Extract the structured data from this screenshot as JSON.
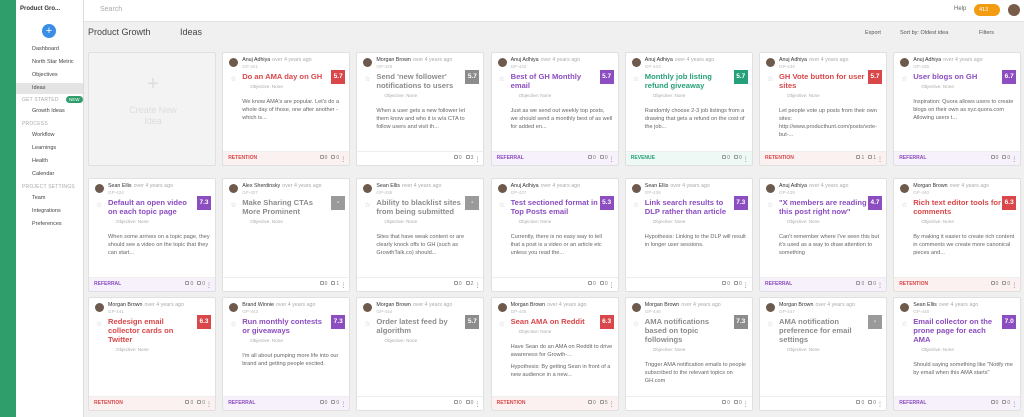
{
  "sidebar": {
    "workspace": "Product Gro...",
    "nav": [
      "Dashboard",
      "North Star Metric",
      "Objectives",
      "Ideas"
    ],
    "sections": [
      {
        "title": "GET STARTED",
        "badge": "NEW",
        "items": [
          "Growth Ideas"
        ]
      },
      {
        "title": "PROCESS",
        "items": [
          "Workflow",
          "Learnings",
          "Health",
          "Calendar"
        ]
      },
      {
        "title": "PROJECT SETTINGS",
        "items": [
          "Team",
          "Integrations",
          "Preferences"
        ]
      }
    ]
  },
  "topbar": {
    "search": "Search",
    "help": "Help",
    "notifications": "413"
  },
  "header": {
    "project": "Product Growth",
    "view": "Ideas",
    "export": "Export",
    "sort": "Sort by: Oldest idea",
    "filters": "Filters"
  },
  "create_card": "Create New Idea",
  "objective_label": "Objective: None",
  "ideas": [
    {
      "author": "Anuj Adhiya",
      "time": "over 4 years ago",
      "id": "GP-421",
      "title": "Do an AMA day on GH",
      "score": "5.7",
      "color": "#d9474a",
      "description": [
        "We know AMA's are popular. Let's do a whole day of those, one after another - which is..."
      ],
      "tag": "RETENTION",
      "counts": [
        0,
        0
      ]
    },
    {
      "author": "Morgan Brown",
      "time": "over 4 years ago",
      "id": "GP-429",
      "title": "Send 'new follower' notifications to users",
      "score": "5.7",
      "color": "#8c8c8c",
      "description": [
        "When a user gets a new follower let them know and who it is w/a CTA to follow users and visit th..."
      ],
      "counts": [
        0,
        3
      ]
    },
    {
      "author": "Anuj Adhiya",
      "time": "over 4 years ago",
      "id": "GP-432",
      "title": "Best of GH Monthly email",
      "score": "5.7",
      "color": "#8b4dbf",
      "description": [
        "Just as we send out weekly top posts, we should send a monthly best of as well for added en..."
      ],
      "tag": "REFERRAL",
      "counts": [
        0,
        0
      ]
    },
    {
      "author": "Anuj Adhiya",
      "time": "over 4 years ago",
      "id": "GP-433",
      "title": "Monthly job listing refund giveaway",
      "score": "5.7",
      "color": "#25a07a",
      "description": [
        "Randomly choose 2-3 job listings from a drawing that gets a refund on the cost of the job..."
      ],
      "tag": "REVENUE",
      "counts": [
        0,
        0
      ]
    },
    {
      "author": "Anuj Adhiya",
      "time": "over 4 years ago",
      "id": "GP-434",
      "title": "GH Vote button for user sites",
      "score": "5.7",
      "color": "#d9474a",
      "description": [
        "Let people vote up posts from their own sites: http://www.producthunt.com/posts/vote-but-..."
      ],
      "tag": "RETENTION",
      "counts": [
        1,
        1
      ]
    },
    {
      "author": "Anuj Adhiya",
      "time": "over 4 years ago",
      "id": "GP-435",
      "title": "User blogs on GH",
      "score": "6.7",
      "color": "#8b4dbf",
      "description": [
        "Inspiration: Quora allows users to create blogs on their own as xyz.quora.com Allowing users t..."
      ],
      "tag": "REFERRAL",
      "counts": [
        0,
        0
      ]
    },
    {
      "author": "Sean Ellis",
      "time": "over 4 years ago",
      "id": "GP-424",
      "title": "Default an open video on each topic page",
      "score": "7.3",
      "color": "#8b4dbf",
      "description": [
        "When some arrives on a topic page, they should see a video on the topic that they can start..."
      ],
      "tag": "REFERRAL",
      "counts": [
        0,
        0
      ]
    },
    {
      "author": "Alex Sherdinsky",
      "time": "over 4 years ago",
      "id": "GP-427",
      "title": "Make Sharing CTAs More Prominent",
      "score": "-",
      "color": "#8c8c8c",
      "counts": [
        0,
        1
      ]
    },
    {
      "author": "Sean Ellis",
      "time": "over 4 years ago",
      "id": "GP-436",
      "title": "Ability to blacklist sites from being submitted",
      "score": "-",
      "color": "#8c8c8c",
      "description": [
        "Sites that have weak content or are clearly knock offs to GH (such as GrowthTalk.co) should..."
      ],
      "counts": [
        0,
        2
      ]
    },
    {
      "author": "Anuj Adhiya",
      "time": "over 4 years ago",
      "id": "GP-437",
      "title": "Test sectioned format in Top Posts email",
      "score": "5.3",
      "color": "#8b4dbf",
      "description": [
        "Currently, there is no easy way to tell that a post is a video or an article etc unless you read the..."
      ],
      "counts": [
        0,
        0
      ]
    },
    {
      "author": "Sean Ellis",
      "time": "over 4 years ago",
      "id": "GP-438",
      "title": "Link search results to DLP rather than article",
      "score": "7.3",
      "color": "#8b4dbf",
      "description": [
        "Hypothesis: Linking to the DLP will result in longer user sessions."
      ],
      "counts": [
        0,
        0
      ]
    },
    {
      "author": "Anuj Adhiya",
      "time": "over 4 years ago",
      "id": "GP-439",
      "title": "\"X members are reading this post right now\"",
      "score": "4.7",
      "color": "#8b4dbf",
      "description": [
        "Can't remember where I've seen this but it's used as a way to draw attention to something"
      ],
      "tag": "REFERRAL",
      "counts": [
        0,
        0
      ]
    },
    {
      "author": "Morgan Brown",
      "time": "over 4 years ago",
      "id": "GP-440",
      "title": "Rich text editor tools for comments",
      "score": "6.3",
      "color": "#d9474a",
      "description": [
        "By making it easier to create rich content in comments we create more canonical pieces and..."
      ],
      "tag": "RETENTION",
      "counts": [
        0,
        0
      ]
    },
    {
      "author": "Morgan Brown",
      "time": "over 4 years ago",
      "id": "GP-441",
      "title": "Redesign email collector cards on Twitter",
      "score": "6.3",
      "color": "#d9474a",
      "tag": "RETENTION",
      "counts": [
        0,
        0
      ]
    },
    {
      "author": "Brand Winnie",
      "time": "over 4 years ago",
      "id": "GP-443",
      "title": "Run monthly contests or giveaways",
      "score": "7.3",
      "color": "#8b4dbf",
      "description": [
        "I'm all about pumping more life into our brand and getting people excited."
      ],
      "tag": "REFERRAL",
      "counts": [
        0,
        0
      ]
    },
    {
      "author": "Morgan Brown",
      "time": "over 4 years ago",
      "id": "GP-444",
      "title": "Order latest feed by algorithm",
      "score": "5.7",
      "color": "#8c8c8c",
      "counts": [
        0,
        0
      ]
    },
    {
      "author": "Morgan Brown",
      "time": "over 4 years ago",
      "id": "GP-445",
      "title": "Sean AMA on Reddit",
      "score": "6.3",
      "color": "#d9474a",
      "description": [
        "Have Sean do an AMA on Reddit to drive awareness for Growth-...",
        "Hypothesis: By getting Sean in front of a new audience in a new..."
      ],
      "tag": "RETENTION",
      "counts": [
        0,
        5
      ]
    },
    {
      "author": "Morgan Brown",
      "time": "over 4 years ago",
      "id": "GP-446",
      "title": "AMA notifications based on topic followings",
      "score": "7.3",
      "color": "#8c8c8c",
      "description": [
        "Trigger AMA notification emails to people subscribed to the relevant topics on GH.com"
      ],
      "counts": [
        0,
        0
      ]
    },
    {
      "author": "Morgan Brown",
      "time": "over 4 years ago",
      "id": "GP-447",
      "title": "AMA notification preference for email settings",
      "score": "-",
      "color": "#8c8c8c",
      "counts": [
        0,
        0
      ]
    },
    {
      "author": "Sean Ellis",
      "time": "over 4 years ago",
      "id": "GP-448",
      "title": "Email collector on the prone page for each AMA",
      "score": "7.0",
      "color": "#8b4dbf",
      "description": [
        "Should saying something like \"Notify me by email when this AMA starts\""
      ],
      "tag": "REFERRAL",
      "counts": [
        0,
        0
      ]
    }
  ]
}
